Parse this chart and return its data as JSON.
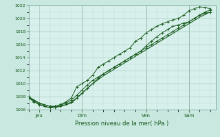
{
  "bg_color": "#c8e8e0",
  "plot_bg_color": "#d8f0ec",
  "grid_color_major": "#a8c8c0",
  "grid_color_minor": "#b8d8d0",
  "line_color": "#1a5c20",
  "xlabel": "Pression niveau de la mer( hPa )",
  "xlim": [
    0,
    210
  ],
  "ylim": [
    1006,
    1022
  ],
  "yticks": [
    1006,
    1008,
    1010,
    1012,
    1014,
    1016,
    1018,
    1020
  ],
  "day_labels": [
    "Jeu",
    "Dim",
    "Ven",
    "Sam"
  ],
  "day_positions": [
    12,
    60,
    132,
    180
  ],
  "day_vlines": [
    60,
    132,
    180
  ],
  "series1_x": [
    0,
    6,
    12,
    18,
    24,
    30,
    36,
    42,
    48,
    54,
    60,
    66,
    72,
    78,
    84,
    90,
    96,
    102,
    108,
    114,
    120,
    126,
    132,
    138,
    144,
    150,
    156,
    162,
    168,
    174,
    180,
    186,
    192,
    198,
    204
  ],
  "series1_y": [
    1008,
    1007.5,
    1007,
    1006.7,
    1006.5,
    1006.5,
    1006.7,
    1007.0,
    1007.5,
    1008.2,
    1009.0,
    1009.8,
    1010.5,
    1011.0,
    1011.5,
    1012.0,
    1012.5,
    1013.0,
    1013.5,
    1014.0,
    1014.5,
    1015.0,
    1015.5,
    1016.0,
    1016.5,
    1017.0,
    1017.5,
    1018.0,
    1018.5,
    1019.0,
    1019.5,
    1020.0,
    1020.5,
    1021.0,
    1021.3
  ],
  "series2_x": [
    0,
    6,
    12,
    18,
    24,
    30,
    36,
    42,
    48,
    54,
    60,
    66,
    72,
    78,
    84,
    90,
    96,
    102,
    108,
    114,
    120,
    126,
    132,
    138,
    144,
    150,
    156,
    162,
    168,
    174,
    180,
    186,
    192,
    198,
    204
  ],
  "series2_y": [
    1007.8,
    1007.2,
    1006.8,
    1006.5,
    1006.3,
    1006.3,
    1006.5,
    1006.8,
    1007.2,
    1007.8,
    1008.5,
    1009.3,
    1010.0,
    1010.8,
    1011.5,
    1012.0,
    1012.5,
    1013.0,
    1013.5,
    1014.0,
    1014.5,
    1015.0,
    1015.8,
    1016.5,
    1017.2,
    1017.8,
    1018.3,
    1018.8,
    1019.0,
    1019.3,
    1019.5,
    1020.0,
    1020.5,
    1020.8,
    1021.0
  ],
  "series3_x": [
    0,
    12,
    24,
    36,
    48,
    60,
    72,
    84,
    96,
    108,
    120,
    132,
    144,
    156,
    168,
    180,
    192,
    204
  ],
  "series3_y": [
    1007.8,
    1007.0,
    1006.5,
    1006.5,
    1007.0,
    1008.5,
    1010.0,
    1011.2,
    1012.2,
    1013.2,
    1014.2,
    1015.2,
    1016.2,
    1017.2,
    1018.2,
    1019.2,
    1020.2,
    1021.0
  ],
  "series_marked_x": [
    0,
    6,
    12,
    18,
    24,
    30,
    36,
    42,
    48,
    54,
    60,
    66,
    72,
    78,
    84,
    90,
    96,
    102,
    108,
    114,
    120,
    126,
    132,
    138,
    144,
    150,
    156,
    162,
    168,
    174,
    180,
    186,
    192,
    198,
    204
  ],
  "series_marked_y": [
    1008.0,
    1007.3,
    1006.7,
    1006.5,
    1006.3,
    1006.5,
    1006.8,
    1007.2,
    1007.8,
    1009.5,
    1010.0,
    1010.5,
    1011.3,
    1012.5,
    1013.0,
    1013.5,
    1014.0,
    1014.5,
    1015.0,
    1015.5,
    1016.5,
    1017.0,
    1017.8,
    1018.3,
    1018.8,
    1019.2,
    1019.5,
    1019.8,
    1020.0,
    1020.5,
    1021.2,
    1021.5,
    1021.8,
    1021.7,
    1021.5
  ]
}
